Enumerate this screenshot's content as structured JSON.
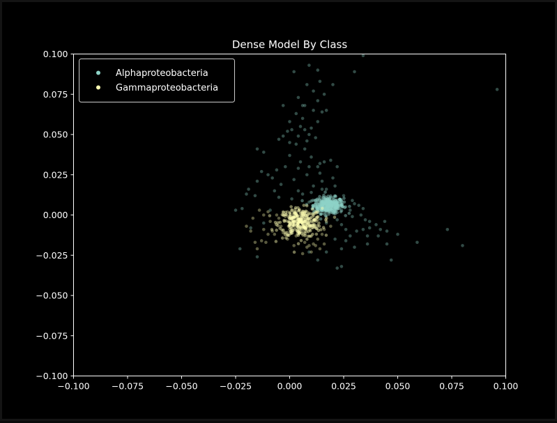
{
  "chart_data": {
    "type": "scatter",
    "title": "Dense Model By Class",
    "xlabel": "",
    "ylabel": "",
    "xlim": [
      -0.1,
      0.1
    ],
    "ylim": [
      -0.1,
      0.1
    ],
    "xticks": [
      -0.1,
      -0.075,
      -0.05,
      -0.025,
      0.0,
      0.025,
      0.05,
      0.075,
      0.1
    ],
    "yticks": [
      -0.1,
      -0.075,
      -0.05,
      -0.025,
      0.0,
      0.025,
      0.05,
      0.075,
      0.1
    ],
    "xtick_labels": [
      "−0.100",
      "−0.075",
      "−0.050",
      "−0.025",
      "0.000",
      "0.025",
      "0.050",
      "0.075",
      "0.100"
    ],
    "ytick_labels": [
      "−0.100",
      "−0.075",
      "−0.050",
      "−0.025",
      "0.000",
      "0.025",
      "0.050",
      "0.075",
      "0.100"
    ],
    "grid": false,
    "legend_position": "top-left",
    "background": "#000000",
    "axis_color": "#ffffff",
    "series": [
      {
        "name": "Alphaproteobacteria",
        "color": "#8dd3c7",
        "cluster": {
          "center": [
            0.018,
            0.006
          ],
          "spread": [
            0.0035,
            0.0025
          ],
          "count": 380
        },
        "points": [
          [
            0.096,
            0.078
          ],
          [
            0.034,
            0.099
          ],
          [
            0.03,
            0.089
          ],
          [
            0.013,
            0.09
          ],
          [
            0.009,
            0.093
          ],
          [
            0.002,
            0.089
          ],
          [
            0.014,
            0.083
          ],
          [
            0.008,
            0.081
          ],
          [
            0.02,
            0.081
          ],
          [
            0.011,
            0.077
          ],
          [
            0.016,
            0.075
          ],
          [
            0.004,
            0.073
          ],
          [
            0.013,
            0.071
          ],
          [
            0.007,
            0.068
          ],
          [
            0.006,
            0.068
          ],
          [
            -0.003,
            0.068
          ],
          [
            0.011,
            0.065
          ],
          [
            0.015,
            0.064
          ],
          [
            0.017,
            0.065
          ],
          [
            0.003,
            0.063
          ],
          [
            0.006,
            0.06
          ],
          [
            0.013,
            0.058
          ],
          [
            0.0,
            0.058
          ],
          [
            0.005,
            0.055
          ],
          [
            0.01,
            0.054
          ],
          [
            0.001,
            0.053
          ],
          [
            0.007,
            0.053
          ],
          [
            -0.001,
            0.052
          ],
          [
            0.009,
            0.05
          ],
          [
            -0.003,
            0.049
          ],
          [
            0.004,
            0.049
          ],
          [
            0.012,
            0.048
          ],
          [
            0.008,
            0.046
          ],
          [
            0.0,
            0.045
          ],
          [
            -0.005,
            0.047
          ],
          [
            0.003,
            0.044
          ],
          [
            0.007,
            0.041
          ],
          [
            -0.015,
            0.041
          ],
          [
            -0.012,
            0.039
          ],
          [
            0.0,
            0.037
          ],
          [
            0.01,
            0.036
          ],
          [
            0.005,
            0.033
          ],
          [
            0.016,
            0.033
          ],
          [
            0.019,
            0.034
          ],
          [
            0.014,
            0.032
          ],
          [
            0.009,
            0.03
          ],
          [
            0.013,
            0.03
          ],
          [
            0.022,
            0.03
          ],
          [
            0.004,
            0.029
          ],
          [
            -0.002,
            0.03
          ],
          [
            -0.006,
            0.028
          ],
          [
            -0.013,
            0.027
          ],
          [
            -0.01,
            0.025
          ],
          [
            0.014,
            0.026
          ],
          [
            0.008,
            0.025
          ],
          [
            0.02,
            0.023
          ],
          [
            0.015,
            0.021
          ],
          [
            0.002,
            0.022
          ],
          [
            -0.015,
            0.021
          ],
          [
            -0.008,
            0.023
          ],
          [
            -0.004,
            0.019
          ],
          [
            0.011,
            0.018
          ],
          [
            0.021,
            0.018
          ],
          [
            0.017,
            0.016
          ],
          [
            -0.019,
            0.016
          ],
          [
            -0.007,
            0.015
          ],
          [
            0.004,
            0.015
          ],
          [
            0.01,
            0.014
          ],
          [
            0.006,
            0.013
          ],
          [
            -0.02,
            0.013
          ],
          [
            -0.016,
            0.012
          ],
          [
            -0.005,
            0.011
          ],
          [
            0.001,
            0.01
          ],
          [
            0.024,
            0.009
          ],
          [
            0.029,
            0.009
          ],
          [
            0.03,
            0.007
          ],
          [
            0.032,
            0.006
          ],
          [
            0.034,
            0.004
          ],
          [
            0.033,
            0.0
          ],
          [
            0.029,
            -0.001
          ],
          [
            0.035,
            -0.003
          ],
          [
            0.037,
            -0.004
          ],
          [
            0.04,
            -0.006
          ],
          [
            0.044,
            -0.004
          ],
          [
            0.042,
            -0.009
          ],
          [
            0.045,
            -0.01
          ],
          [
            0.037,
            -0.008
          ],
          [
            0.034,
            -0.009
          ],
          [
            0.031,
            -0.01
          ],
          [
            0.026,
            -0.009
          ],
          [
            0.024,
            -0.006
          ],
          [
            0.028,
            -0.013
          ],
          [
            0.026,
            -0.016
          ],
          [
            0.036,
            -0.013
          ],
          [
            0.041,
            -0.013
          ],
          [
            0.045,
            -0.018
          ],
          [
            0.036,
            -0.018
          ],
          [
            0.03,
            -0.02
          ],
          [
            0.021,
            -0.015
          ],
          [
            0.024,
            -0.021
          ],
          [
            0.022,
            -0.033
          ],
          [
            0.024,
            -0.032
          ],
          [
            0.017,
            -0.023
          ],
          [
            0.013,
            -0.028
          ],
          [
            0.009,
            -0.023
          ],
          [
            0.047,
            -0.028
          ],
          [
            0.059,
            -0.017
          ],
          [
            0.073,
            -0.009
          ],
          [
            0.08,
            -0.019
          ],
          [
            0.05,
            -0.012
          ],
          [
            -0.025,
            0.003
          ],
          [
            -0.022,
            0.004
          ],
          [
            -0.023,
            -0.021
          ],
          [
            -0.015,
            -0.026
          ],
          [
            -0.018,
            -0.008
          ],
          [
            -0.012,
            -0.005
          ],
          [
            -0.009,
            0.003
          ],
          [
            0.017,
            -0.005
          ],
          [
            0.022,
            -0.003
          ],
          [
            0.012,
            0.003
          ],
          [
            0.025,
            0.012
          ],
          [
            0.015,
            0.016
          ],
          [
            0.028,
            0.003
          ],
          [
            0.009,
            0.008
          ],
          [
            0.013,
            0.01
          ]
        ]
      },
      {
        "name": "Gammaproteobacteria",
        "color": "#ffffb3",
        "cluster": {
          "center": [
            0.005,
            -0.005
          ],
          "spread": [
            0.005,
            0.0045
          ],
          "count": 300
        },
        "points": [
          [
            -0.001,
            0.002
          ],
          [
            0.0,
            0.001
          ],
          [
            -0.002,
            -0.001
          ],
          [
            -0.003,
            0.002
          ],
          [
            0.001,
            -0.003
          ],
          [
            -0.008,
            -0.01
          ],
          [
            -0.01,
            -0.012
          ],
          [
            -0.007,
            -0.012
          ],
          [
            -0.012,
            -0.009
          ],
          [
            -0.009,
            -0.004
          ],
          [
            -0.013,
            -0.016
          ],
          [
            -0.015,
            -0.021
          ],
          [
            -0.011,
            -0.017
          ],
          [
            -0.016,
            -0.017
          ],
          [
            -0.018,
            -0.01
          ],
          [
            -0.02,
            -0.007
          ],
          [
            -0.017,
            -0.002
          ],
          [
            -0.012,
            0.0
          ],
          [
            -0.014,
            0.003
          ],
          [
            -0.006,
            0.0
          ],
          [
            -0.01,
            0.002
          ],
          [
            -0.005,
            -0.002
          ],
          [
            -0.004,
            -0.007
          ],
          [
            0.003,
            -0.013
          ],
          [
            0.007,
            -0.017
          ],
          [
            0.009,
            -0.019
          ],
          [
            0.008,
            -0.02
          ],
          [
            0.011,
            -0.018
          ],
          [
            0.013,
            -0.015
          ],
          [
            0.015,
            -0.012
          ],
          [
            0.016,
            -0.009
          ],
          [
            0.017,
            -0.004
          ],
          [
            0.019,
            -0.007
          ],
          [
            0.012,
            -0.019
          ],
          [
            0.01,
            -0.023
          ],
          [
            0.006,
            -0.024
          ],
          [
            0.002,
            -0.019
          ],
          [
            -0.001,
            -0.015
          ],
          [
            0.003,
            0.001
          ],
          [
            0.006,
            0.0
          ],
          [
            0.011,
            0.0
          ],
          [
            0.013,
            -0.003
          ],
          [
            0.008,
            0.002
          ],
          [
            0.001,
            0.003
          ],
          [
            0.004,
            -0.003
          ],
          [
            0.007,
            -0.008
          ],
          [
            0.0,
            -0.009
          ],
          [
            -0.003,
            -0.011
          ],
          [
            0.014,
            -0.021
          ],
          [
            0.016,
            -0.018
          ]
        ]
      }
    ]
  }
}
